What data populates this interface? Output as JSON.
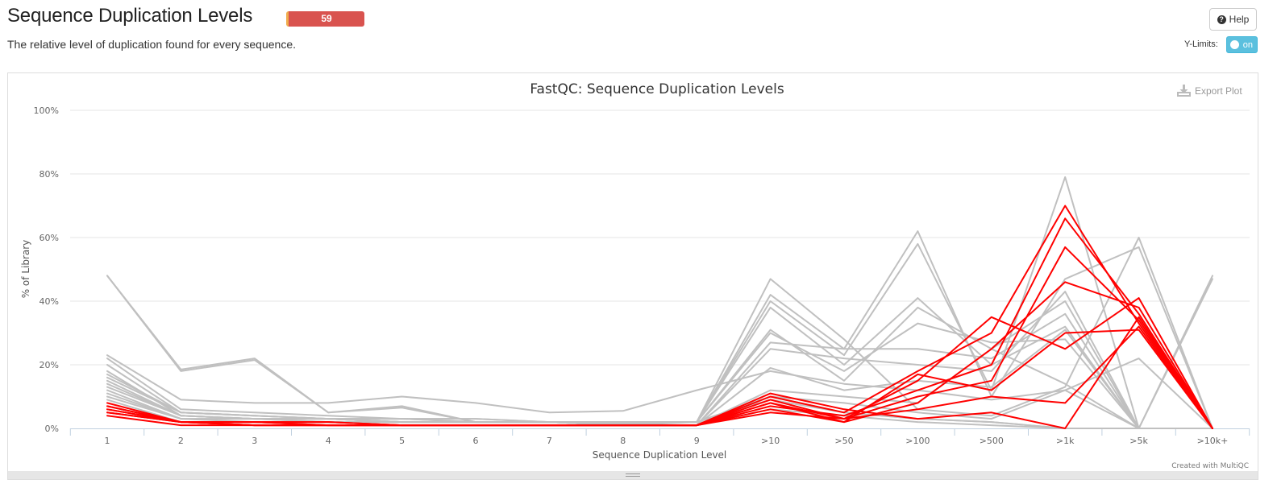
{
  "page": {
    "title": "Sequence Duplication Levels",
    "status_count": "59",
    "status_color": "#d9534f",
    "subtitle": "The relative level of duplication found for every sequence."
  },
  "toolbar": {
    "help_icon": "question-circle-icon",
    "help_label": "Help",
    "ylimits_label": "Y-Limits:",
    "ylimits_toggle": "on"
  },
  "plot": {
    "export_icon": "download-icon",
    "export_label": "Export Plot",
    "credit": "Created with MultiQC"
  },
  "chart_data": {
    "type": "line",
    "title": "FastQC: Sequence Duplication Levels",
    "xlabel": "Sequence Duplication Level",
    "ylabel": "% of Library",
    "categories": [
      "1",
      "2",
      "3",
      "4",
      "5",
      "6",
      "7",
      "8",
      "9",
      ">10",
      ">50",
      ">100",
      ">500",
      ">1k",
      ">5k",
      ">10k+"
    ],
    "ylim": [
      0,
      100
    ],
    "yticks": [
      "0%",
      "20%",
      "40%",
      "60%",
      "80%",
      "100%"
    ],
    "grid": true,
    "legend": "none",
    "colors": {
      "fail": "#ff0000",
      "pass": "#c0c0c0"
    },
    "series": [
      {
        "status": "pass",
        "values": [
          48,
          18.5,
          22,
          5,
          7,
          2,
          2,
          1.5,
          2,
          10,
          5,
          3,
          2,
          0,
          0,
          48
        ]
      },
      {
        "status": "pass",
        "values": [
          48,
          18,
          21.5,
          5,
          6.5,
          2,
          2,
          1.5,
          2,
          9,
          5,
          3,
          2,
          0,
          0,
          47
        ]
      },
      {
        "status": "pass",
        "values": [
          23,
          9,
          8,
          8,
          10,
          8,
          5,
          5.5,
          12,
          18,
          14,
          12,
          9,
          12,
          22,
          0
        ]
      },
      {
        "status": "pass",
        "values": [
          22,
          6,
          5,
          4,
          3,
          3,
          2,
          2,
          2,
          47,
          28,
          6,
          4,
          13,
          60,
          0
        ]
      },
      {
        "status": "pass",
        "values": [
          20,
          5,
          4,
          3,
          3,
          2,
          2,
          2,
          2,
          42,
          25,
          62,
          10,
          47,
          57,
          0
        ]
      },
      {
        "status": "pass",
        "values": [
          18,
          4,
          3,
          3,
          2,
          2,
          2,
          2,
          2,
          40,
          23,
          58,
          12,
          79,
          0,
          0
        ]
      },
      {
        "status": "pass",
        "values": [
          17,
          5,
          4,
          3,
          3,
          3,
          2,
          2,
          2,
          38,
          20,
          41,
          20,
          32,
          0,
          0
        ]
      },
      {
        "status": "pass",
        "values": [
          16,
          5,
          4,
          3,
          3,
          2,
          2,
          2,
          2,
          31,
          15,
          38,
          25,
          40,
          0,
          0
        ]
      },
      {
        "status": "pass",
        "values": [
          15,
          4,
          3,
          3,
          2,
          2,
          2,
          1,
          2,
          30,
          18,
          33,
          27,
          28,
          0,
          0
        ]
      },
      {
        "status": "pass",
        "values": [
          14,
          4,
          3,
          3,
          2,
          2,
          2,
          1,
          1,
          27,
          25,
          25,
          22,
          36,
          0,
          0
        ]
      },
      {
        "status": "pass",
        "values": [
          13,
          4,
          3,
          3,
          2,
          2,
          2,
          1,
          1,
          25,
          22,
          20,
          18,
          43,
          0,
          0
        ]
      },
      {
        "status": "pass",
        "values": [
          12,
          3,
          3,
          2,
          2,
          2,
          2,
          1,
          1,
          19,
          12,
          15,
          13,
          31,
          0,
          0
        ]
      },
      {
        "status": "pass",
        "values": [
          11,
          3,
          3,
          2,
          2,
          2,
          2,
          1,
          1,
          12,
          10,
          8,
          25,
          14,
          0,
          0
        ]
      },
      {
        "status": "pass",
        "values": [
          10,
          3,
          2,
          2,
          2,
          2,
          2,
          1,
          1,
          10,
          8,
          5,
          3,
          12,
          0,
          0
        ]
      },
      {
        "status": "pass",
        "values": [
          9,
          2,
          2,
          2,
          1,
          1,
          1,
          1,
          1,
          6,
          4,
          2,
          1,
          0,
          0,
          0
        ]
      },
      {
        "status": "fail",
        "values": [
          8,
          2,
          2,
          2,
          1,
          1,
          1,
          1,
          1,
          8,
          3,
          15,
          35,
          25,
          41,
          0
        ]
      },
      {
        "status": "fail",
        "values": [
          7,
          2,
          2,
          2,
          1,
          1,
          1,
          1,
          1,
          10,
          5,
          18,
          30,
          70,
          33,
          0
        ]
      },
      {
        "status": "fail",
        "values": [
          6,
          2,
          2,
          1,
          1,
          1,
          1,
          1,
          1,
          7,
          4,
          12,
          20,
          66,
          36,
          0
        ]
      },
      {
        "status": "fail",
        "values": [
          5,
          2,
          1,
          1,
          1,
          1,
          1,
          1,
          1,
          5,
          3,
          10,
          15,
          57,
          34,
          0
        ]
      },
      {
        "status": "fail",
        "values": [
          4,
          1,
          1,
          1,
          1,
          1,
          1,
          1,
          1,
          6,
          2,
          8,
          25,
          46,
          38,
          0
        ]
      },
      {
        "status": "fail",
        "values": [
          5,
          2,
          1,
          1,
          1,
          1,
          1,
          1,
          1,
          8,
          2,
          17,
          12,
          30,
          31,
          0
        ]
      },
      {
        "status": "fail",
        "values": [
          6,
          2,
          1,
          1,
          1,
          1,
          1,
          1,
          1,
          9,
          3,
          6,
          10,
          8,
          32,
          0
        ]
      },
      {
        "status": "fail",
        "values": [
          7,
          2,
          2,
          1,
          1,
          1,
          1,
          1,
          1,
          11,
          6,
          3,
          5,
          0,
          35,
          0
        ]
      }
    ]
  }
}
